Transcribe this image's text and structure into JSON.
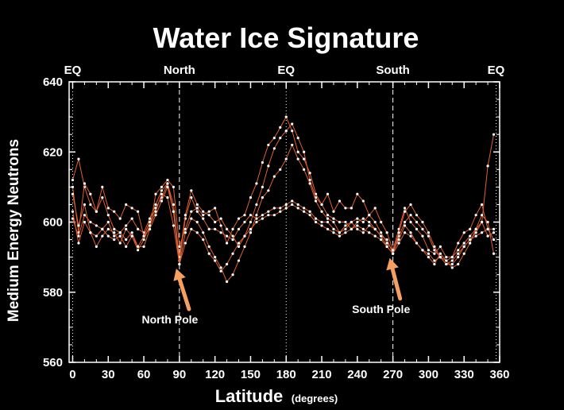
{
  "chart_data": {
    "type": "line",
    "title": "Water Ice Signature",
    "xlabel": "Latitude",
    "xlabel_unit": "(degrees)",
    "ylabel": "Medium Energy Neutrons",
    "xlim": [
      -3,
      360
    ],
    "ylim": [
      560,
      640
    ],
    "x_ticks": [
      0,
      30,
      60,
      90,
      120,
      150,
      180,
      210,
      240,
      270,
      300,
      330,
      360
    ],
    "y_ticks": [
      560,
      580,
      600,
      620,
      640
    ],
    "reference_lines": [
      {
        "x": 0,
        "label": "EQ",
        "style": "dotted"
      },
      {
        "x": 90,
        "label": "North",
        "style": "dashed"
      },
      {
        "x": 180,
        "label": "EQ",
        "style": "dotted"
      },
      {
        "x": 270,
        "label": "South",
        "style": "dashed"
      },
      {
        "x": 357,
        "label": "EQ",
        "style": "dotted"
      }
    ],
    "annotations": [
      {
        "text": "North Pole",
        "x": 82,
        "y": 577
      },
      {
        "text": "South Pole",
        "x": 260,
        "y": 580
      }
    ],
    "colors": {
      "background": "#000000",
      "line": "#e06030",
      "marker": "#ffffff",
      "arrow": "#f5a060",
      "axis": "#ffffff"
    },
    "grid": false,
    "series": [
      {
        "x": [
          0,
          5,
          10,
          15,
          20,
          25,
          30,
          35,
          40,
          45,
          50,
          55,
          60,
          65,
          70,
          75,
          80,
          85,
          90,
          95,
          100,
          105,
          110,
          115,
          120,
          125,
          130,
          135,
          140,
          145,
          150,
          155,
          160,
          165,
          170,
          175,
          180,
          185,
          190,
          195,
          200,
          205,
          210,
          215,
          220,
          225,
          230,
          235,
          240,
          245,
          250,
          255,
          260,
          265,
          270,
          275,
          280,
          285,
          290,
          295,
          300,
          305,
          310,
          315,
          320,
          325,
          330,
          335,
          340,
          345,
          350,
          355
        ],
        "y": [
          612,
          618,
          610,
          605,
          603,
          607,
          602,
          598,
          597,
          599,
          601,
          598,
          597,
          601,
          605,
          609,
          611,
          605,
          589,
          601,
          607,
          603,
          601,
          598,
          598,
          597,
          596,
          595,
          598,
          600,
          602,
          601,
          602,
          603,
          604,
          604,
          605,
          606,
          605,
          604,
          603,
          601,
          600,
          600,
          598,
          597,
          598,
          600,
          598,
          597,
          599,
          598,
          596,
          595,
          591,
          596,
          600,
          602,
          600,
          598,
          596,
          592,
          590,
          589,
          590,
          592,
          594,
          596,
          598,
          600,
          616,
          625
        ]
      },
      {
        "x": [
          0,
          5,
          10,
          15,
          20,
          25,
          30,
          35,
          40,
          45,
          50,
          55,
          60,
          65,
          70,
          75,
          80,
          85,
          90,
          95,
          100,
          105,
          110,
          115,
          120,
          125,
          130,
          135,
          140,
          145,
          150,
          155,
          160,
          165,
          170,
          175,
          180,
          185,
          190,
          195,
          200,
          205,
          210,
          215,
          220,
          225,
          230,
          235,
          240,
          245,
          250,
          255,
          260,
          265,
          270,
          275,
          280,
          285,
          290,
          295,
          300,
          305,
          310,
          315,
          320,
          325,
          330,
          335,
          340,
          345,
          350,
          355
        ],
        "y": [
          610,
          597,
          611,
          608,
          603,
          610,
          604,
          603,
          601,
          605,
          604,
          603,
          596,
          598,
          608,
          610,
          612,
          610,
          593,
          598,
          603,
          604,
          602,
          603,
          604,
          599,
          594,
          598,
          601,
          602,
          607,
          611,
          617,
          622,
          624,
          627,
          630,
          626,
          620,
          618,
          614,
          608,
          605,
          608,
          603,
          606,
          604,
          604,
          608,
          606,
          602,
          604,
          600,
          597,
          592,
          598,
          604,
          600,
          598,
          596,
          592,
          591,
          593,
          590,
          590,
          594,
          597,
          598,
          602,
          605,
          598,
          595
        ]
      },
      {
        "x": [
          0,
          5,
          10,
          15,
          20,
          25,
          30,
          35,
          40,
          45,
          50,
          55,
          60,
          65,
          70,
          75,
          80,
          85,
          90,
          95,
          100,
          105,
          110,
          115,
          120,
          125,
          130,
          135,
          140,
          145,
          150,
          155,
          160,
          165,
          170,
          175,
          180,
          185,
          190,
          195,
          200,
          205,
          210,
          215,
          220,
          225,
          230,
          235,
          240,
          245,
          250,
          255,
          260,
          265,
          270,
          275,
          280,
          285,
          290,
          295,
          300,
          305,
          310,
          315,
          320,
          325,
          330,
          335,
          340,
          345,
          350,
          355
        ],
        "y": [
          601,
          596,
          602,
          600,
          599,
          598,
          600,
          596,
          597,
          595,
          597,
          593,
          596,
          600,
          604,
          607,
          611,
          603,
          590,
          602,
          609,
          605,
          603,
          602,
          600,
          601,
          598,
          596,
          593,
          596,
          600,
          605,
          610,
          616,
          621,
          624,
          626,
          628,
          624,
          620,
          612,
          607,
          605,
          602,
          601,
          600,
          600,
          598,
          600,
          601,
          600,
          598,
          596,
          593,
          591,
          597,
          603,
          605,
          602,
          600,
          597,
          593,
          590,
          588,
          588,
          590,
          593,
          595,
          597,
          600,
          596,
          597
        ]
      },
      {
        "x": [
          0,
          5,
          10,
          15,
          20,
          25,
          30,
          35,
          40,
          45,
          50,
          55,
          60,
          65,
          70,
          75,
          80,
          85,
          90,
          95,
          100,
          105,
          110,
          115,
          120,
          125,
          130,
          135,
          140,
          145,
          150,
          155,
          160,
          165,
          170,
          175,
          180,
          185,
          190,
          195,
          200,
          205,
          210,
          215,
          220,
          225,
          230,
          235,
          240,
          245,
          250,
          255,
          260,
          265,
          270,
          275,
          280,
          285,
          290,
          295,
          300,
          305,
          310,
          315,
          320,
          325,
          330,
          335,
          340,
          345,
          350,
          355
        ],
        "y": [
          608,
          599,
          605,
          597,
          593,
          596,
          598,
          597,
          594,
          598,
          596,
          593,
          593,
          598,
          602,
          606,
          610,
          603,
          588,
          597,
          601,
          600,
          597,
          593,
          590,
          587,
          583,
          585,
          589,
          593,
          597,
          602,
          607,
          609,
          613,
          615,
          618,
          622,
          618,
          615,
          611,
          606,
          603,
          601,
          600,
          597,
          599,
          600,
          601,
          600,
          602,
          600,
          597,
          594,
          592,
          595,
          599,
          597,
          594,
          592,
          590,
          588,
          591,
          589,
          587,
          588,
          591,
          594,
          598,
          602,
          600,
          591
        ]
      },
      {
        "x": [
          0,
          5,
          10,
          15,
          20,
          25,
          30,
          35,
          40,
          45,
          50,
          55,
          60,
          65,
          70,
          75,
          80,
          85,
          90,
          95,
          100,
          105,
          110,
          115,
          120,
          125,
          130,
          135,
          140,
          145,
          150,
          155,
          160,
          165,
          170,
          175,
          180,
          185,
          190,
          195,
          200,
          205,
          210,
          215,
          220,
          225,
          230,
          235,
          240,
          245,
          250,
          255,
          260,
          265,
          270,
          275,
          280,
          285,
          290,
          295,
          300,
          305,
          310,
          315,
          320,
          325,
          330,
          335,
          340,
          345,
          350,
          355
        ],
        "y": [
          603,
          594,
          600,
          597,
          596,
          598,
          596,
          595,
          596,
          593,
          596,
          592,
          595,
          599,
          603,
          608,
          607,
          599,
          588,
          594,
          598,
          597,
          595,
          591,
          589,
          586,
          588,
          591,
          594,
          596,
          598,
          600,
          601,
          602,
          602,
          603,
          604,
          605,
          604,
          603,
          602,
          600,
          599,
          598,
          597,
          596,
          597,
          598,
          599,
          598,
          597,
          596,
          595,
          593,
          591,
          594,
          597,
          596,
          594,
          592,
          591,
          589,
          590,
          588,
          589,
          591,
          593,
          595,
          596,
          597,
          598,
          598
        ]
      }
    ]
  }
}
